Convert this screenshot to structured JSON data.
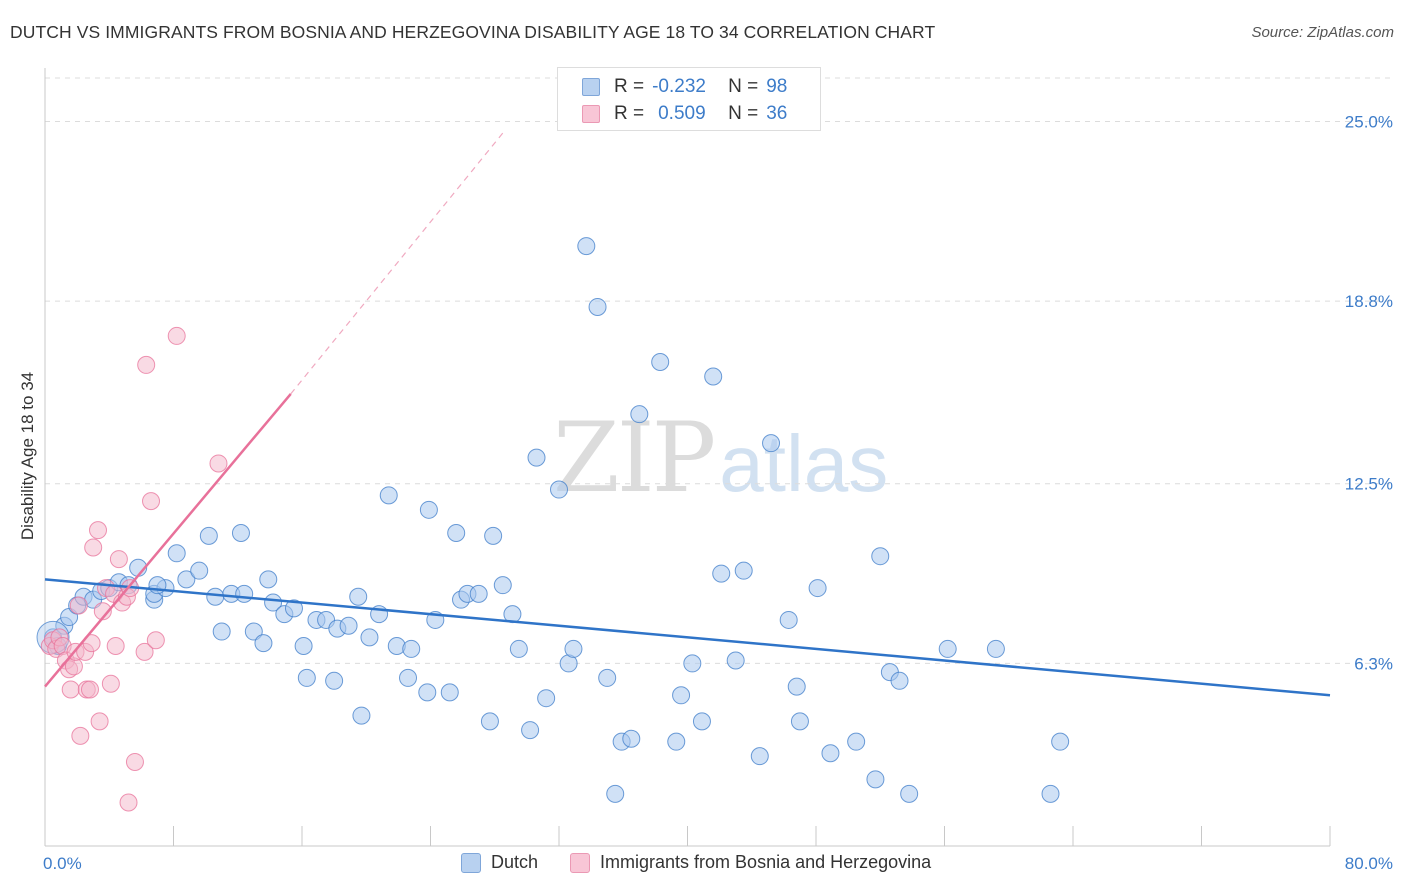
{
  "header": {
    "title": "DUTCH VS IMMIGRANTS FROM BOSNIA AND HERZEGOVINA DISABILITY AGE 18 TO 34 CORRELATION CHART",
    "source": "Source: ZipAtlas.com"
  },
  "legend": {
    "rows": [
      {
        "r_label": "R =",
        "r_value": "-0.232",
        "n_label": "N =",
        "n_value": "98"
      },
      {
        "r_label": "R =",
        "r_value": "0.509",
        "n_label": "N =",
        "n_value": "36"
      }
    ]
  },
  "watermark": {
    "zip": "ZIP",
    "atlas": "atlas"
  },
  "chart_data": {
    "type": "scatter",
    "title": "DUTCH VS IMMIGRANTS FROM BOSNIA AND HERZEGOVINA DISABILITY AGE 18 TO 34 CORRELATION CHART",
    "xlabel": "",
    "ylabel": "Disability Age 18 to 34",
    "xlim": [
      0,
      80
    ],
    "ylim": [
      0,
      26.5
    ],
    "x_tick_labels": [
      "0.0%",
      "80.0%"
    ],
    "y_ticks": [
      6.3,
      12.5,
      18.8,
      25.0
    ],
    "y_tick_labels": [
      "6.3%",
      "12.5%",
      "18.8%",
      "25.0%"
    ],
    "grid": "horizontal dashed",
    "legend_position": "bottom",
    "colors": {
      "dutch": "#3d7cc9",
      "dutch_fill": "#a9c8ee",
      "bosnia": "#e8719a",
      "bosnia_fill": "#f4b6ca"
    },
    "series": [
      {
        "name": "Dutch",
        "trend": {
          "x": [
            0,
            80
          ],
          "y": [
            9.2,
            5.2
          ]
        },
        "points": [
          [
            0.5,
            7.2
          ],
          [
            0.8,
            6.9
          ],
          [
            1.2,
            7.6
          ],
          [
            1.5,
            7.9
          ],
          [
            2.0,
            8.3
          ],
          [
            2.4,
            8.6
          ],
          [
            3.0,
            8.5
          ],
          [
            3.5,
            8.8
          ],
          [
            4.0,
            8.9
          ],
          [
            4.6,
            9.1
          ],
          [
            5.2,
            9.0
          ],
          [
            5.8,
            9.6
          ],
          [
            6.8,
            8.5
          ],
          [
            6.8,
            8.7
          ],
          [
            7.5,
            8.9
          ],
          [
            8.2,
            10.1
          ],
          [
            8.8,
            9.2
          ],
          [
            9.6,
            9.5
          ],
          [
            10.2,
            10.7
          ],
          [
            10.6,
            8.6
          ],
          [
            11.0,
            7.4
          ],
          [
            11.6,
            8.7
          ],
          [
            12.2,
            10.8
          ],
          [
            12.4,
            8.7
          ],
          [
            13.0,
            7.4
          ],
          [
            13.6,
            7.0
          ],
          [
            13.9,
            9.2
          ],
          [
            14.2,
            8.4
          ],
          [
            14.9,
            8.0
          ],
          [
            15.5,
            8.2
          ],
          [
            16.1,
            6.9
          ],
          [
            16.3,
            5.8
          ],
          [
            16.9,
            7.8
          ],
          [
            17.5,
            7.8
          ],
          [
            18.0,
            5.7
          ],
          [
            18.2,
            7.5
          ],
          [
            18.9,
            7.6
          ],
          [
            19.5,
            8.6
          ],
          [
            19.7,
            4.5
          ],
          [
            20.2,
            7.2
          ],
          [
            20.8,
            8.0
          ],
          [
            21.4,
            12.1
          ],
          [
            21.9,
            6.9
          ],
          [
            22.6,
            5.8
          ],
          [
            22.8,
            6.8
          ],
          [
            23.8,
            5.3
          ],
          [
            23.9,
            11.6
          ],
          [
            24.3,
            7.8
          ],
          [
            25.2,
            5.3
          ],
          [
            25.6,
            10.8
          ],
          [
            25.9,
            8.5
          ],
          [
            26.3,
            8.7
          ],
          [
            27.0,
            8.7
          ],
          [
            27.7,
            4.3
          ],
          [
            27.9,
            10.7
          ],
          [
            28.5,
            9.0
          ],
          [
            29.1,
            8.0
          ],
          [
            29.5,
            6.8
          ],
          [
            30.2,
            4.0
          ],
          [
            30.6,
            13.4
          ],
          [
            31.2,
            5.1
          ],
          [
            32.0,
            12.3
          ],
          [
            32.6,
            6.3
          ],
          [
            32.9,
            6.8
          ],
          [
            33.7,
            20.7
          ],
          [
            34.4,
            18.6
          ],
          [
            35.0,
            5.8
          ],
          [
            35.5,
            1.8
          ],
          [
            35.9,
            3.6
          ],
          [
            36.5,
            3.7
          ],
          [
            37.0,
            14.9
          ],
          [
            38.3,
            16.7
          ],
          [
            39.3,
            3.6
          ],
          [
            39.6,
            5.2
          ],
          [
            40.3,
            6.3
          ],
          [
            40.9,
            4.3
          ],
          [
            41.6,
            16.2
          ],
          [
            42.1,
            9.4
          ],
          [
            43.0,
            6.4
          ],
          [
            43.5,
            9.5
          ],
          [
            44.5,
            3.1
          ],
          [
            45.2,
            13.9
          ],
          [
            46.3,
            7.8
          ],
          [
            46.8,
            5.5
          ],
          [
            47.0,
            4.3
          ],
          [
            48.1,
            8.9
          ],
          [
            48.9,
            3.2
          ],
          [
            50.5,
            3.6
          ],
          [
            51.7,
            2.3
          ],
          [
            52.0,
            10.0
          ],
          [
            52.6,
            6.0
          ],
          [
            53.2,
            5.7
          ],
          [
            53.8,
            1.8
          ],
          [
            56.2,
            6.8
          ],
          [
            59.2,
            6.8
          ],
          [
            62.6,
            1.8
          ],
          [
            63.2,
            3.6
          ],
          [
            7.0,
            9.0
          ]
        ]
      },
      {
        "name": "Immigrants from Bosnia and Herzegovina",
        "trend": {
          "x": [
            0,
            15.3
          ],
          "y": [
            5.5,
            15.6
          ],
          "extended_to": [
            28.5,
            24.6
          ]
        },
        "points": [
          [
            0.3,
            6.9
          ],
          [
            0.5,
            7.1
          ],
          [
            0.7,
            6.8
          ],
          [
            0.9,
            7.2
          ],
          [
            1.1,
            6.9
          ],
          [
            1.3,
            6.4
          ],
          [
            1.5,
            6.1
          ],
          [
            1.6,
            5.4
          ],
          [
            1.8,
            6.2
          ],
          [
            1.9,
            6.7
          ],
          [
            2.1,
            8.3
          ],
          [
            2.2,
            3.8
          ],
          [
            2.5,
            6.7
          ],
          [
            2.6,
            5.4
          ],
          [
            2.8,
            5.4
          ],
          [
            2.9,
            7.0
          ],
          [
            3.0,
            10.3
          ],
          [
            3.3,
            10.9
          ],
          [
            3.4,
            4.3
          ],
          [
            3.6,
            8.1
          ],
          [
            3.8,
            8.9
          ],
          [
            4.1,
            5.6
          ],
          [
            4.3,
            8.7
          ],
          [
            4.4,
            6.9
          ],
          [
            4.6,
            9.9
          ],
          [
            4.8,
            8.4
          ],
          [
            5.1,
            8.6
          ],
          [
            5.3,
            8.9
          ],
          [
            5.6,
            2.9
          ],
          [
            6.2,
            6.7
          ],
          [
            6.3,
            16.6
          ],
          [
            6.6,
            11.9
          ],
          [
            6.9,
            7.1
          ],
          [
            8.2,
            17.6
          ],
          [
            10.8,
            13.2
          ],
          [
            5.2,
            1.5
          ]
        ]
      }
    ]
  },
  "bottom_legend": {
    "items": [
      {
        "label": "Dutch"
      },
      {
        "label": "Immigrants from Bosnia and Herzegovina"
      }
    ]
  }
}
